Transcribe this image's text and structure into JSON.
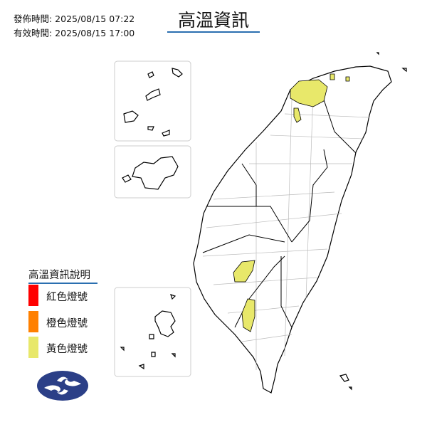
{
  "header": {
    "issued": "發佈時間: 2025/08/15 07:22",
    "valid": "有效時間: 2025/08/15 17:00",
    "title": "高溫資訊"
  },
  "legend": {
    "title": "高溫資訊說明",
    "items": [
      {
        "label": "紅色燈號",
        "color": "#ff0000"
      },
      {
        "label": "橙色燈號",
        "color": "#ff8000"
      },
      {
        "label": "黃色燈號",
        "color": "#e8e86a"
      }
    ]
  },
  "map": {
    "highlight_color": "#e8e86a",
    "logo": "cwa-logo"
  }
}
